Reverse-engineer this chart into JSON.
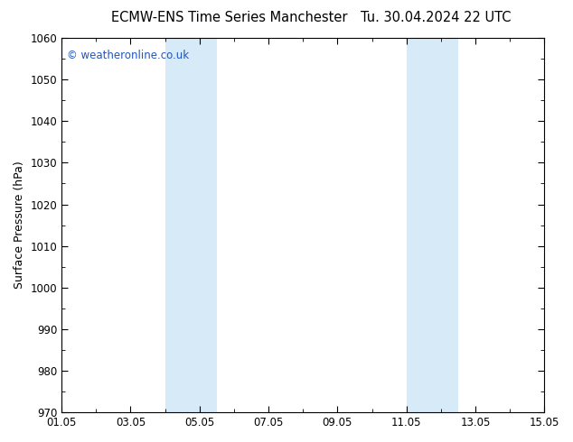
{
  "title_left": "ECMW-ENS Time Series Manchester",
  "title_right": "Tu. 30.04.2024 22 UTC",
  "ylabel": "Surface Pressure (hPa)",
  "ylim": [
    970,
    1060
  ],
  "ytick_interval": 10,
  "x_start": 0,
  "x_end": 14,
  "x_tick_labels": [
    "01.05",
    "03.05",
    "05.05",
    "07.05",
    "09.05",
    "11.05",
    "13.05",
    "15.05"
  ],
  "x_tick_positions_days": [
    0,
    2,
    4,
    6,
    8,
    10,
    12,
    14
  ],
  "shaded_regions": [
    {
      "x_start_days": 3.0,
      "x_end_days": 4.5
    },
    {
      "x_start_days": 10.0,
      "x_end_days": 11.5
    }
  ],
  "shade_color": "#d6eaf8",
  "background_color": "#ffffff",
  "plot_bg_color": "#ffffff",
  "watermark_text": "© weatheronline.co.uk",
  "watermark_color": "#2255bb",
  "title_fontsize": 10.5,
  "axis_label_fontsize": 9,
  "tick_label_fontsize": 8.5,
  "watermark_fontsize": 8.5
}
